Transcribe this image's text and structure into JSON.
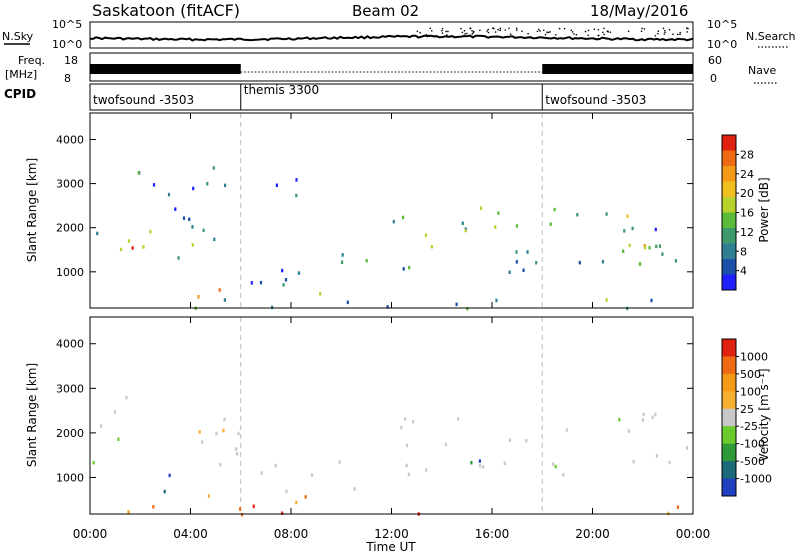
{
  "header": {
    "station": "Saskatoon (fitACF)",
    "beam": "Beam 02",
    "date": "18/May/2016"
  },
  "noise_panel": {
    "left_label": "N.Sky",
    "right_label": "N.Search",
    "left_ticks": [
      "10^5",
      "10^0"
    ],
    "right_ticks": [
      "10^5",
      "10^0"
    ]
  },
  "freq_panel": {
    "left_label_1": "Freq.",
    "left_label_2": "[MHz]",
    "left_ticks": [
      "18",
      "8"
    ],
    "right_label": "Nave",
    "right_ticks": [
      "60",
      "0"
    ],
    "freq_mhz_segments": [
      {
        "start_hour": 0,
        "end_hour": 6,
        "level": "high"
      },
      {
        "start_hour": 6,
        "end_hour": 18,
        "level": "low"
      },
      {
        "start_hour": 18,
        "end_hour": 24,
        "level": "high"
      }
    ]
  },
  "cpid_panel": {
    "label": "CPID",
    "segments": [
      {
        "start_hour": 0,
        "end_hour": 6,
        "name": "twofsound -3503"
      },
      {
        "start_hour": 6,
        "end_hour": 18,
        "name": "themis 3300"
      },
      {
        "start_hour": 18,
        "end_hour": 24,
        "name": "twofsound -3503"
      }
    ]
  },
  "chart_data": [
    {
      "type": "heatmap",
      "panel": "power",
      "ylabel": "Slant Range [km]",
      "y_ticks": [
        1000,
        2000,
        3000,
        4000
      ],
      "ylim": [
        180,
        4600
      ],
      "xlim": [
        0,
        24
      ],
      "colorbar_label": "Power [dB]",
      "colorbar_ticks": [
        "28",
        "24",
        "20",
        "16",
        "12",
        "8",
        "4"
      ],
      "colorbar_colors": [
        "#2020ff",
        "#1b4fa8",
        "#2f7f93",
        "#3d9a6b",
        "#5dbb3a",
        "#b8d12c",
        "#f0c020",
        "#f59a17",
        "#f06a12",
        "#e02010"
      ],
      "scatter_regions": [
        {
          "t0": 0.0,
          "t1": 6.0,
          "r0": 1300,
          "r1": 2600,
          "level": 0.35
        },
        {
          "t0": 1.5,
          "t1": 3.3,
          "r0": 1100,
          "r1": 1600,
          "level": 0.85
        },
        {
          "t0": 0.0,
          "t1": 2.0,
          "r0": 2800,
          "r1": 3300,
          "level": 0.25
        },
        {
          "t0": 2.0,
          "t1": 6.0,
          "r0": 2200,
          "r1": 3500,
          "level": 0.2
        },
        {
          "t0": 3.0,
          "t1": 11.0,
          "r0": 380,
          "r1": 700,
          "level": 0.7
        },
        {
          "t0": 6.3,
          "t1": 11.0,
          "r0": 700,
          "r1": 1500,
          "level": 0.3
        },
        {
          "t0": 7.0,
          "t1": 9.0,
          "r0": 2700,
          "r1": 3400,
          "level": 0.15
        },
        {
          "t0": 12.0,
          "t1": 18.0,
          "r0": 1000,
          "r1": 2600,
          "level": 0.35
        },
        {
          "t0": 14.5,
          "t1": 17.5,
          "r0": 1700,
          "r1": 2300,
          "level": 0.6
        },
        {
          "t0": 18.0,
          "t1": 24.0,
          "r0": 1100,
          "r1": 2500,
          "level": 0.3
        },
        {
          "t0": 20.5,
          "t1": 24.0,
          "r0": 1400,
          "r1": 2400,
          "level": 0.55
        },
        {
          "t0": 0.0,
          "t1": 24.0,
          "r0": 200,
          "r1": 420,
          "level": 0.3
        }
      ]
    },
    {
      "type": "heatmap",
      "panel": "velocity",
      "xlabel": "Time UT",
      "ylabel": "Slant Range [km]",
      "x_ticks": [
        "00:00",
        "04:00",
        "08:00",
        "12:00",
        "16:00",
        "20:00",
        "00:00"
      ],
      "y_ticks": [
        1000,
        2000,
        3000,
        4000
      ],
      "ylim": [
        180,
        4600
      ],
      "xlim": [
        0,
        24
      ],
      "colorbar_label": "Velocity [m s⁻¹]",
      "colorbar_ticks": [
        "1000",
        "500",
        "100",
        "25",
        "-25",
        "-100",
        "-500",
        "-1000"
      ],
      "colorbar_colors": [
        "#2040c0",
        "#1d6a7a",
        "#2f9a3a",
        "#6acc2c",
        "#c8c8c8",
        "#f5b030",
        "#f59a17",
        "#f06a12",
        "#e02010"
      ],
      "scatter_regions": [
        {
          "t0": 0.0,
          "t1": 6.0,
          "r0": 1300,
          "r1": 2600,
          "level": 0.5
        },
        {
          "t0": 1.5,
          "t1": 3.3,
          "r0": 500,
          "r1": 1600,
          "level": 0.8
        },
        {
          "t0": 0.0,
          "t1": 2.0,
          "r0": 2800,
          "r1": 3300,
          "level": 0.5
        },
        {
          "t0": 3.0,
          "t1": 11.0,
          "r0": 380,
          "r1": 700,
          "level": 0.3
        },
        {
          "t0": 6.3,
          "t1": 11.0,
          "r0": 700,
          "r1": 1500,
          "level": 0.5
        },
        {
          "t0": 12.0,
          "t1": 18.0,
          "r0": 1000,
          "r1": 2600,
          "level": 0.5
        },
        {
          "t0": 14.5,
          "t1": 16.0,
          "r0": 1000,
          "r1": 1800,
          "level": 0.9
        },
        {
          "t0": 18.0,
          "t1": 24.0,
          "r0": 1100,
          "r1": 2500,
          "level": 0.5
        },
        {
          "t0": 0.0,
          "t1": 24.0,
          "r0": 200,
          "r1": 420,
          "level": 0.2
        }
      ]
    }
  ]
}
